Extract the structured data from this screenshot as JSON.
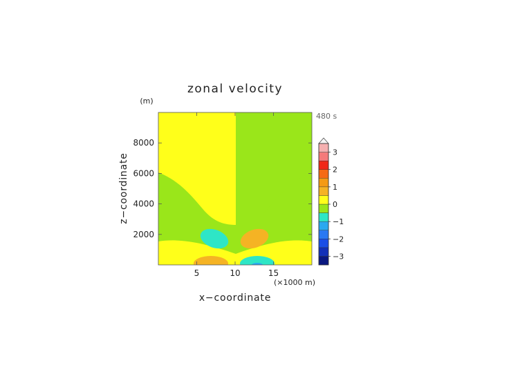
{
  "chart_data": {
    "type": "heatmap",
    "title": "zonal velocity",
    "xlabel": "x−coordinate",
    "ylabel": "z−coordinate",
    "x_unit": "(×1000 m)",
    "y_unit": "(m)",
    "time_label": "480 s",
    "xlim": [
      0,
      20
    ],
    "ylim": [
      0,
      10000
    ],
    "x_ticks": [
      5,
      10,
      15
    ],
    "y_ticks": [
      2000,
      4000,
      6000,
      8000
    ],
    "colorbar": {
      "ticks": [
        {
          "value": 3,
          "label": "3"
        },
        {
          "value": 2,
          "label": "2"
        },
        {
          "value": 1,
          "label": "1"
        },
        {
          "value": 0,
          "label": "0"
        },
        {
          "value": -1,
          "label": "−1"
        },
        {
          "value": -2,
          "label": "−2"
        },
        {
          "value": -3,
          "label": "−3"
        }
      ],
      "levels": [
        {
          "from": -3.5,
          "to": -3.0,
          "color": "#0a1880"
        },
        {
          "from": -3.0,
          "to": -2.5,
          "color": "#1230b8"
        },
        {
          "from": -2.5,
          "to": -2.0,
          "color": "#1a4ee6"
        },
        {
          "from": -2.0,
          "to": -1.5,
          "color": "#2a78f2"
        },
        {
          "from": -1.5,
          "to": -1.0,
          "color": "#2aa8f0"
        },
        {
          "from": -1.0,
          "to": -0.5,
          "color": "#2ee6c6"
        },
        {
          "from": -0.5,
          "to": 0.0,
          "color": "#9ae61a"
        },
        {
          "from": 0.0,
          "to": 0.5,
          "color": "#ffff1a"
        },
        {
          "from": 0.5,
          "to": 1.0,
          "color": "#f5b324"
        },
        {
          "from": 1.0,
          "to": 1.5,
          "color": "#f59a14"
        },
        {
          "from": 1.5,
          "to": 2.0,
          "color": "#f56a14"
        },
        {
          "from": 2.0,
          "to": 2.5,
          "color": "#f02818"
        },
        {
          "from": 2.5,
          "to": 3.0,
          "color": "#f57a7a"
        },
        {
          "from": 3.0,
          "to": 3.5,
          "color": "#f5b0b0"
        }
      ]
    },
    "field_regions": [
      {
        "name": "left-upper-positive",
        "level": "0 to 0.5",
        "x": [
          0,
          10
        ],
        "z": [
          2800,
          10000
        ]
      },
      {
        "name": "right-upper-negative",
        "level": "-0.5 to 0",
        "x": [
          10,
          20
        ],
        "z": [
          2800,
          10000
        ]
      },
      {
        "name": "left-negative-cell",
        "level": "-1 to -0.5",
        "center": [
          7,
          1700
        ],
        "radius": [
          1.9,
          520
        ]
      },
      {
        "name": "right-positive-cell",
        "level": "0.5 to 1",
        "center": [
          13,
          1700
        ],
        "radius": [
          1.9,
          520
        ]
      },
      {
        "name": "left-low-positive-cell",
        "level": "0.5 to 1",
        "center": [
          7,
          200
        ],
        "radius": [
          2.2,
          350
        ]
      },
      {
        "name": "right-low-negative-cell",
        "level": "-1 to -0.5",
        "center": [
          13,
          200
        ],
        "radius": [
          2.2,
          350
        ]
      }
    ]
  }
}
